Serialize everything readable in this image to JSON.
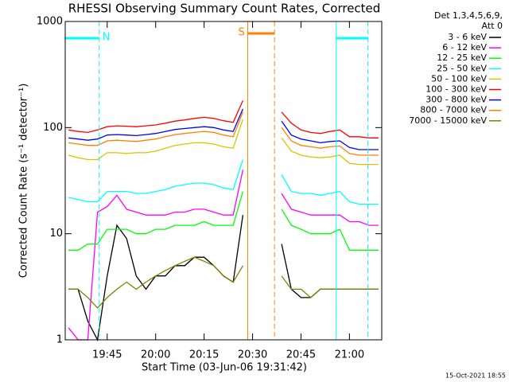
{
  "chart_data": {
    "type": "line",
    "title": "RHESSI Observing Summary Count Rates, Corrected",
    "x_label": "Start Time (03-Jun-06 19:31:42)",
    "y_label": "Corrected Count Rate (s⁻¹ detector⁻¹)",
    "legend_header": [
      "Det 1,3,4,5,6,9,",
      "Att 0"
    ],
    "footer": "15-Oct-2021 18:55",
    "log_y": true,
    "xlim": [
      1172,
      1270
    ],
    "ylim": [
      1,
      1000
    ],
    "yticks": [
      1,
      10,
      100,
      1000
    ],
    "xticks": [
      {
        "value": 1185,
        "label": "19:45"
      },
      {
        "value": 1200,
        "label": "20:00"
      },
      {
        "value": 1215,
        "label": "20:15"
      },
      {
        "value": 1230,
        "label": "20:30"
      },
      {
        "value": 1245,
        "label": "20:45"
      },
      {
        "value": 1260,
        "label": "21:00"
      }
    ],
    "x": [
      1173,
      1176,
      1179,
      1182,
      1185,
      1188,
      1191,
      1194,
      1197,
      1200,
      1203,
      1206,
      1209,
      1212,
      1215,
      1218,
      1221,
      1224,
      1227,
      1230,
      1233,
      1236,
      1239,
      1242,
      1245,
      1248,
      1251,
      1254,
      1257,
      1260,
      1263,
      1266,
      1269
    ],
    "series": [
      {
        "name": "3 - 6 keV",
        "color": "#000000",
        "values": [
          3,
          3,
          1.5,
          1,
          4,
          12,
          9,
          4,
          3,
          4,
          4,
          5,
          5,
          6,
          6,
          5,
          4,
          3.5,
          15,
          null,
          null,
          null,
          8,
          3,
          2.5,
          2.5,
          3,
          3,
          3,
          3,
          3,
          3,
          3
        ]
      },
      {
        "name": "6 - 12 keV",
        "color": "#ff00ff",
        "values": [
          1.3,
          1,
          1,
          16,
          18,
          23,
          17,
          16,
          15,
          15,
          15,
          16,
          16,
          17,
          17,
          16,
          15,
          15,
          40,
          null,
          null,
          null,
          24,
          17,
          16,
          15,
          15,
          15,
          15,
          13,
          13,
          12,
          12
        ]
      },
      {
        "name": "12 - 25 keV",
        "color": "#00ff00",
        "values": [
          7,
          7,
          8,
          8,
          11,
          11,
          11,
          10,
          10,
          11,
          11,
          12,
          12,
          12,
          13,
          12,
          12,
          12,
          25,
          null,
          null,
          null,
          17,
          12,
          11,
          10,
          10,
          10,
          11,
          7,
          7,
          7,
          7
        ]
      },
      {
        "name": "25 - 50 keV",
        "color": "#00ffff",
        "values": [
          22,
          21,
          20,
          20,
          25,
          25,
          25,
          24,
          24,
          25,
          26,
          28,
          29,
          30,
          30,
          29,
          27,
          26,
          50,
          null,
          null,
          null,
          36,
          25,
          24,
          24,
          23,
          24,
          25,
          20,
          19,
          19,
          19
        ]
      },
      {
        "name": "50 - 100 keV",
        "color": "#d8c400",
        "values": [
          55,
          52,
          50,
          50,
          58,
          58,
          57,
          58,
          58,
          60,
          64,
          68,
          70,
          72,
          72,
          70,
          66,
          64,
          120,
          null,
          null,
          null,
          80,
          60,
          55,
          53,
          52,
          53,
          55,
          46,
          45,
          45,
          45
        ]
      },
      {
        "name": "100 - 300 keV",
        "color": "#ff0000",
        "values": [
          95,
          92,
          90,
          95,
          102,
          104,
          103,
          102,
          104,
          106,
          110,
          115,
          118,
          122,
          125,
          122,
          116,
          112,
          180,
          null,
          null,
          null,
          140,
          110,
          95,
          90,
          88,
          92,
          95,
          82,
          82,
          80,
          80
        ]
      },
      {
        "name": "300 - 800 keV",
        "color": "#0000ff",
        "values": [
          80,
          78,
          76,
          78,
          85,
          86,
          85,
          84,
          86,
          88,
          92,
          96,
          98,
          100,
          102,
          100,
          95,
          92,
          150,
          null,
          null,
          null,
          115,
          85,
          78,
          75,
          72,
          74,
          75,
          65,
          62,
          62,
          62
        ]
      },
      {
        "name": "800 - 7000 keV",
        "color": "#ff8000",
        "values": [
          72,
          70,
          68,
          68,
          75,
          76,
          75,
          74,
          76,
          78,
          82,
          86,
          88,
          90,
          92,
          90,
          85,
          82,
          140,
          null,
          null,
          null,
          100,
          75,
          68,
          66,
          64,
          66,
          67,
          57,
          55,
          55,
          55
        ]
      },
      {
        "name": "7000 - 15000 keV",
        "color": "#808000",
        "values": [
          3,
          3,
          2.5,
          2,
          2.5,
          3,
          3.5,
          3,
          3.5,
          4,
          4.5,
          5,
          5.5,
          6,
          5.5,
          5,
          4,
          3.5,
          5,
          null,
          null,
          null,
          4,
          3,
          3,
          2.5,
          3,
          3,
          3,
          3,
          3,
          3,
          3
        ]
      }
    ],
    "intervals": [
      {
        "label": "N",
        "start": 1172,
        "end": 1182.5,
        "color": "#00ffff"
      },
      {
        "label": "S",
        "start": 1228.5,
        "end": 1236.8,
        "color": "#ff8000"
      },
      {
        "start": 1255.9,
        "end": 1265.7,
        "color": "#00ffff"
      }
    ]
  }
}
